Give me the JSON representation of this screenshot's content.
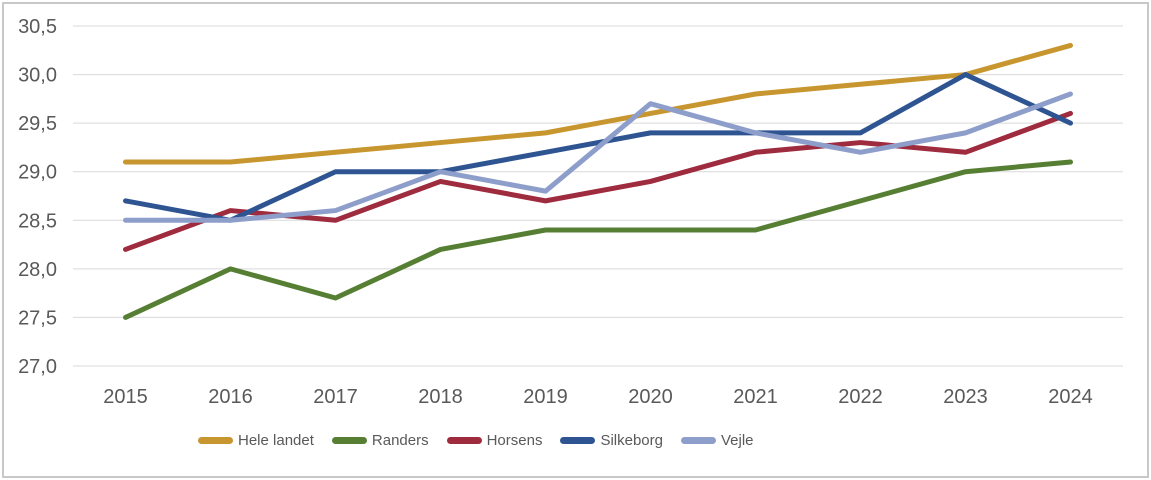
{
  "chart_data": {
    "type": "line",
    "x_labels": [
      "2015",
      "2016",
      "2017",
      "2018",
      "2019",
      "2020",
      "2021",
      "2022",
      "2023",
      "2024"
    ],
    "y_tick_labels": [
      "27,0",
      "27,5",
      "28,0",
      "28,5",
      "29,0",
      "29,5",
      "30,0",
      "30,5"
    ],
    "y_tick_values": [
      27.0,
      27.5,
      28.0,
      28.5,
      29.0,
      29.5,
      30.0,
      30.5
    ],
    "ylim": [
      27.0,
      30.5
    ],
    "grid": true,
    "legend_position": "bottom",
    "series": [
      {
        "name": "Hele landet",
        "color": "#C8962E",
        "values": [
          29.1,
          29.1,
          29.2,
          29.3,
          29.4,
          29.6,
          29.8,
          29.9,
          30.0,
          30.3
        ]
      },
      {
        "name": "Randers",
        "color": "#567F34",
        "values": [
          27.5,
          28.0,
          27.7,
          28.2,
          28.4,
          28.4,
          28.4,
          28.7,
          29.0,
          29.1
        ]
      },
      {
        "name": "Horsens",
        "color": "#9E2B3E",
        "values": [
          28.2,
          28.6,
          28.5,
          28.9,
          28.7,
          28.9,
          29.2,
          29.3,
          29.2,
          29.6
        ]
      },
      {
        "name": "Silkeborg",
        "color": "#2E5492",
        "values": [
          28.7,
          28.5,
          29.0,
          29.0,
          29.2,
          29.4,
          29.4,
          29.4,
          30.0,
          29.5
        ]
      },
      {
        "name": "Vejle",
        "color": "#8E9ECB",
        "values": [
          28.5,
          28.5,
          28.6,
          29.0,
          28.8,
          29.7,
          29.4,
          29.2,
          29.4,
          29.8
        ]
      }
    ]
  },
  "style": {
    "axis_text_color": "#595959",
    "gridline_color": "#D9D9D9",
    "frame_border_color": "#C8C8C8",
    "background": "#FFFFFF"
  }
}
